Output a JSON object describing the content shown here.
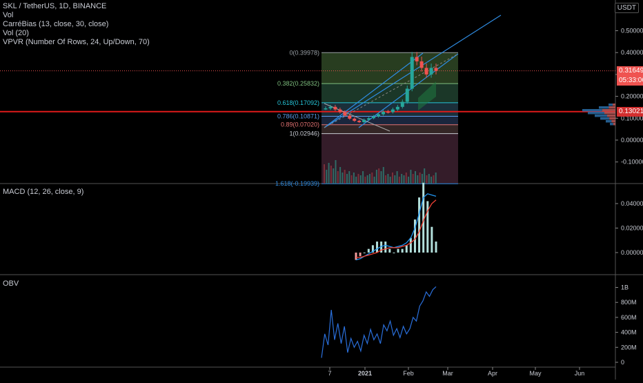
{
  "header": {
    "symbol_line": "SKL / TetherUS, 1D, BINANCE",
    "indicators": [
      "Vol",
      "CarréBias (13, close, 30, close)",
      "Vol (20)",
      "VPVR (Number Of Rows, 24, Up/Down, 70)"
    ],
    "currency": "USDT"
  },
  "colors": {
    "background": "#000000",
    "up": "#26a69a",
    "down": "#ef5350",
    "macd_line": "#2196f3",
    "signal_line": "#f44336",
    "obv_line": "#2a6fdb",
    "trend_line": "#2f8de4",
    "horizontal_line": "#e01b1b",
    "fib_zone_top": "#3d5a2a",
    "fib_zone_bottom": "#5a2a3a"
  },
  "price_badges": {
    "last_price": "0.31649",
    "countdown": "05:33:06",
    "line_price": "0.13021"
  },
  "main_chart": {
    "y_ticks": [
      "0.50000",
      "0.40000",
      "0.30000",
      "0.20000",
      "0.10000",
      "0.00000",
      "-0.10000"
    ],
    "fib_levels": [
      {
        "label": "0(0.39978)",
        "value": 0.39978
      },
      {
        "label": "0.382(0.25832)",
        "value": 0.25832
      },
      {
        "label": "0.618(0.17092)",
        "value": 0.17092
      },
      {
        "label": "0.786(0.10871)",
        "value": 0.10871
      },
      {
        "label": "0.89(0.07020)",
        "value": 0.0702
      },
      {
        "label": "1(0.02946)",
        "value": 0.02946
      },
      {
        "label": "1.618(-0.19939)",
        "value": -0.19939
      }
    ],
    "horizontal_line_value": 0.13021
  },
  "macd": {
    "legend": "MACD (12, 26, close, 9)",
    "y_ticks": [
      "0.04000",
      "0.02000",
      "0.00000"
    ]
  },
  "obv": {
    "legend": "OBV",
    "y_ticks": [
      "1B",
      "800M",
      "600M",
      "400M",
      "200M",
      "0"
    ]
  },
  "x_axis": {
    "labels": [
      "7",
      "2021",
      "Feb",
      "Mar",
      "Apr",
      "May",
      "Jun"
    ]
  },
  "chart_data": {
    "type": "line",
    "title": "SKL / TetherUS, 1D, BINANCE",
    "xlabel": "",
    "ylabel": "",
    "x_range": [
      "Dec 2020",
      "Jun 2021"
    ],
    "ylim": [
      -0.2,
      0.55
    ],
    "price_series": {
      "name": "",
      "x": [
        "Dec 06",
        "Dec 10",
        "Dec 14",
        "Dec 18",
        "Dec 22",
        "Dec 26",
        "Dec 30",
        "Jan 03",
        "Jan 07",
        "Jan 11",
        "Jan 15",
        "Jan 19",
        "Jan 23",
        "Jan 27",
        "Jan 31",
        "Feb 02",
        "Feb 04",
        "Feb 06",
        "Feb 08",
        "Feb 10",
        "Feb 12",
        "Feb 14",
        "Feb 16",
        "Feb 18"
      ],
      "close": [
        0.145,
        0.152,
        0.14,
        0.128,
        0.112,
        0.098,
        0.088,
        0.082,
        0.093,
        0.1,
        0.108,
        0.118,
        0.13,
        0.128,
        0.14,
        0.152,
        0.175,
        0.235,
        0.38,
        0.36,
        0.33,
        0.3,
        0.33,
        0.316
      ]
    },
    "macd_series": [
      {
        "name": "MACD",
        "values": [
          -0.006,
          -0.005,
          -0.003,
          -0.001,
          0.001,
          0.003,
          0.005,
          0.006,
          0.005,
          0.004,
          0.005,
          0.006,
          0.008,
          0.012,
          0.02,
          0.032,
          0.045,
          0.048,
          0.047,
          0.046
        ]
      },
      {
        "name": "Signal",
        "values": [
          -0.004,
          -0.004,
          -0.003,
          -0.002,
          -0.001,
          0.0,
          0.002,
          0.003,
          0.004,
          0.004,
          0.004,
          0.005,
          0.006,
          0.008,
          0.011,
          0.017,
          0.026,
          0.034,
          0.04,
          0.043
        ]
      }
    ],
    "obv_series": {
      "name": "OBV",
      "values_millions": [
        60,
        380,
        230,
        700,
        300,
        520,
        250,
        480,
        130,
        320,
        200,
        280,
        150,
        360,
        250,
        440,
        300,
        380,
        250,
        500,
        420,
        550,
        360,
        450,
        330,
        480,
        380,
        450,
        600,
        550,
        750,
        820,
        940,
        880,
        970,
        1010
      ]
    }
  }
}
